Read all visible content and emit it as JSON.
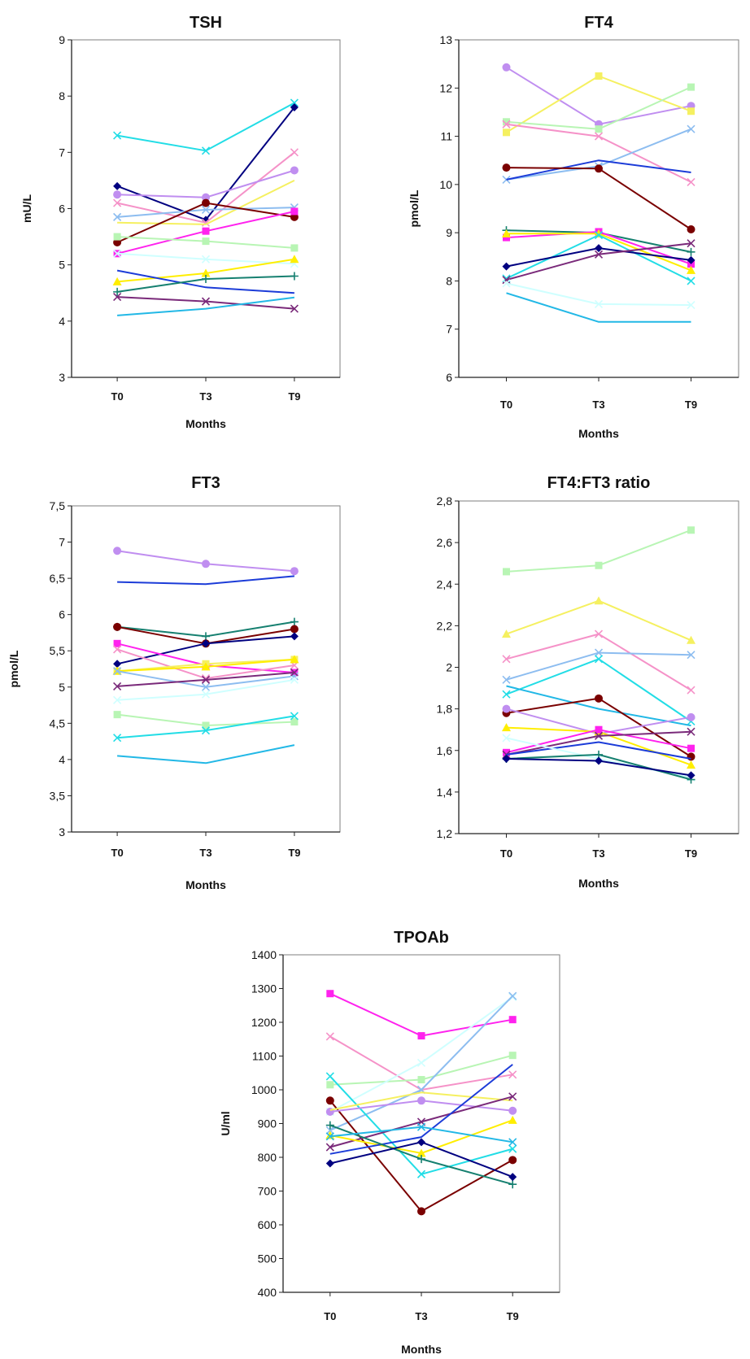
{
  "chart_data": [
    {
      "id": "tsh",
      "type": "line",
      "title": "TSH",
      "xlabel": "Months",
      "ylabel": "mU/L",
      "categories": [
        "T0",
        "T3",
        "T9"
      ],
      "ylim": [
        3,
        9
      ],
      "yticks": [
        3,
        4,
        5,
        6,
        7,
        8,
        9
      ],
      "grid": false,
      "series": [
        {
          "values": [
            7.3,
            7.03,
            7.88
          ],
          "color": "#22dde6",
          "marker": "x"
        },
        {
          "values": [
            6.4,
            5.8,
            7.8
          ],
          "color": "#000080",
          "marker": "diamond"
        },
        {
          "values": [
            6.1,
            5.75,
            7.0
          ],
          "color": "#f592c8",
          "marker": "x"
        },
        {
          "values": [
            6.25,
            6.2,
            6.68
          ],
          "color": "#c08ef0",
          "marker": "circle"
        },
        {
          "values": [
            5.75,
            5.72,
            6.5
          ],
          "color": "#f5f060",
          "marker": "none"
        },
        {
          "values": [
            5.85,
            5.98,
            6.02
          ],
          "color": "#8dbdf0",
          "marker": "x"
        },
        {
          "values": [
            5.4,
            6.1,
            5.85
          ],
          "color": "#7a0000",
          "marker": "circle"
        },
        {
          "values": [
            5.2,
            5.6,
            5.95
          ],
          "color": "#ff22ee",
          "marker": "square"
        },
        {
          "values": [
            5.5,
            5.42,
            5.3
          ],
          "color": "#b8f5b4",
          "marker": "square"
        },
        {
          "values": [
            5.2,
            5.1,
            5.02
          ],
          "color": "#cfffff",
          "marker": "x"
        },
        {
          "values": [
            4.7,
            4.85,
            5.1
          ],
          "color": "#ffee00",
          "marker": "triangle"
        },
        {
          "values": [
            4.9,
            4.6,
            4.5
          ],
          "color": "#1c3cd8",
          "marker": "none"
        },
        {
          "values": [
            4.52,
            4.75,
            4.8
          ],
          "color": "#168070",
          "marker": "plus"
        },
        {
          "values": [
            4.43,
            4.35,
            4.22
          ],
          "color": "#7a2a7a",
          "marker": "x"
        },
        {
          "values": [
            4.1,
            4.22,
            4.42
          ],
          "color": "#22b8e6",
          "marker": "none"
        }
      ]
    },
    {
      "id": "ft4",
      "type": "line",
      "title": "FT4",
      "xlabel": "Months",
      "ylabel": "pmol/L",
      "categories": [
        "T0",
        "T3",
        "T9"
      ],
      "ylim": [
        6,
        13
      ],
      "yticks": [
        6,
        7,
        8,
        9,
        10,
        11,
        12,
        13
      ],
      "grid": false,
      "series": [
        {
          "values": [
            12.43,
            11.25,
            11.63
          ],
          "color": "#c08ef0",
          "marker": "circle"
        },
        {
          "values": [
            11.08,
            12.25,
            11.52
          ],
          "color": "#f5f060",
          "marker": "square"
        },
        {
          "values": [
            11.3,
            11.15,
            12.02
          ],
          "color": "#b8f5b4",
          "marker": "square"
        },
        {
          "values": [
            11.25,
            11.0,
            10.05
          ],
          "color": "#f592c8",
          "marker": "x"
        },
        {
          "values": [
            10.1,
            10.38,
            11.15
          ],
          "color": "#8dbdf0",
          "marker": "x"
        },
        {
          "values": [
            10.1,
            10.5,
            10.25
          ],
          "color": "#1c3cd8",
          "marker": "none"
        },
        {
          "values": [
            10.35,
            10.33,
            9.07
          ],
          "color": "#7a0000",
          "marker": "circle"
        },
        {
          "values": [
            9.05,
            9.0,
            8.6
          ],
          "color": "#168070",
          "marker": "plus"
        },
        {
          "values": [
            8.9,
            9.02,
            8.35
          ],
          "color": "#ff22ee",
          "marker": "square"
        },
        {
          "values": [
            8.98,
            8.98,
            8.22
          ],
          "color": "#ffee00",
          "marker": "triangle"
        },
        {
          "values": [
            8.05,
            8.95,
            8.0
          ],
          "color": "#22dde6",
          "marker": "x"
        },
        {
          "values": [
            8.3,
            8.68,
            8.43
          ],
          "color": "#000080",
          "marker": "diamond"
        },
        {
          "values": [
            8.02,
            8.55,
            8.78
          ],
          "color": "#7a2a7a",
          "marker": "x"
        },
        {
          "values": [
            7.95,
            7.52,
            7.5
          ],
          "color": "#cfffff",
          "marker": "x"
        },
        {
          "values": [
            7.75,
            7.15,
            7.15
          ],
          "color": "#22b8e6",
          "marker": "none"
        }
      ]
    },
    {
      "id": "ft3",
      "type": "line",
      "title": "FT3",
      "xlabel": "Months",
      "ylabel": "pmol/L",
      "categories": [
        "T0",
        "T3",
        "T9"
      ],
      "ylim": [
        3,
        7.5
      ],
      "yticks": [
        3,
        3.5,
        4,
        4.5,
        5,
        5.5,
        6,
        6.5,
        7,
        7.5
      ],
      "decimal": ",",
      "grid": false,
      "series": [
        {
          "values": [
            6.88,
            6.7,
            6.6
          ],
          "color": "#c08ef0",
          "marker": "circle"
        },
        {
          "values": [
            6.45,
            6.42,
            6.53
          ],
          "color": "#1c3cd8",
          "marker": "none"
        },
        {
          "values": [
            5.83,
            5.7,
            5.9
          ],
          "color": "#168070",
          "marker": "plus"
        },
        {
          "values": [
            5.83,
            5.6,
            5.8
          ],
          "color": "#7a0000",
          "marker": "circle"
        },
        {
          "values": [
            5.32,
            5.6,
            5.7
          ],
          "color": "#000080",
          "marker": "diamond"
        },
        {
          "values": [
            5.6,
            5.3,
            5.2
          ],
          "color": "#ff22ee",
          "marker": "square"
        },
        {
          "values": [
            5.52,
            5.12,
            5.3
          ],
          "color": "#f592c8",
          "marker": "x"
        },
        {
          "values": [
            5.22,
            5.32,
            5.38
          ],
          "color": "#f5f060",
          "marker": "square"
        },
        {
          "values": [
            5.22,
            5.28,
            5.38
          ],
          "color": "#ffee00",
          "marker": "triangle"
        },
        {
          "values": [
            5.22,
            5.0,
            5.15
          ],
          "color": "#8dbdf0",
          "marker": "x"
        },
        {
          "values": [
            5.01,
            5.1,
            5.2
          ],
          "color": "#7a2a7a",
          "marker": "x"
        },
        {
          "values": [
            4.82,
            4.9,
            5.1
          ],
          "color": "#cfffff",
          "marker": "x"
        },
        {
          "values": [
            4.62,
            4.47,
            4.52
          ],
          "color": "#b8f5b4",
          "marker": "square"
        },
        {
          "values": [
            4.3,
            4.4,
            4.6
          ],
          "color": "#22dde6",
          "marker": "x"
        },
        {
          "values": [
            4.05,
            3.95,
            4.2
          ],
          "color": "#22b8e6",
          "marker": "none"
        }
      ]
    },
    {
      "id": "ratio",
      "type": "line",
      "title": "FT4:FT3 ratio",
      "xlabel": "Months",
      "ylabel": "",
      "categories": [
        "T0",
        "T3",
        "T9"
      ],
      "ylim": [
        1.2,
        2.8
      ],
      "yticks": [
        1.2,
        1.4,
        1.6,
        1.8,
        2.0,
        2.2,
        2.4,
        2.6,
        2.8
      ],
      "decimal": ",",
      "grid": false,
      "series": [
        {
          "values": [
            2.46,
            2.49,
            2.66
          ],
          "color": "#b8f5b4",
          "marker": "square"
        },
        {
          "values": [
            2.16,
            2.32,
            2.13
          ],
          "color": "#f5f060",
          "marker": "triangle"
        },
        {
          "values": [
            2.04,
            2.16,
            1.89
          ],
          "color": "#f592c8",
          "marker": "x"
        },
        {
          "values": [
            1.94,
            2.07,
            2.06
          ],
          "color": "#8dbdf0",
          "marker": "x"
        },
        {
          "values": [
            1.87,
            2.04,
            1.74
          ],
          "color": "#22dde6",
          "marker": "x"
        },
        {
          "values": [
            1.91,
            1.8,
            1.72
          ],
          "color": "#22b8e6",
          "marker": "none"
        },
        {
          "values": [
            1.78,
            1.85,
            1.57
          ],
          "color": "#7a0000",
          "marker": "circle"
        },
        {
          "values": [
            1.8,
            1.68,
            1.76
          ],
          "color": "#c08ef0",
          "marker": "circle"
        },
        {
          "values": [
            1.71,
            1.69,
            1.53
          ],
          "color": "#ffee00",
          "marker": "triangle"
        },
        {
          "values": [
            1.59,
            1.7,
            1.61
          ],
          "color": "#ff22ee",
          "marker": "square"
        },
        {
          "values": [
            1.58,
            1.67,
            1.69
          ],
          "color": "#7a2a7a",
          "marker": "x"
        },
        {
          "values": [
            1.58,
            1.64,
            1.56
          ],
          "color": "#1c3cd8",
          "marker": "none"
        },
        {
          "values": [
            1.66,
            1.56,
            1.47
          ],
          "color": "#cfffff",
          "marker": "x"
        },
        {
          "values": [
            1.56,
            1.58,
            1.46
          ],
          "color": "#168070",
          "marker": "plus"
        },
        {
          "values": [
            1.56,
            1.55,
            1.48
          ],
          "color": "#000080",
          "marker": "diamond"
        }
      ]
    },
    {
      "id": "tpoab",
      "type": "line",
      "title": "TPOAb",
      "xlabel": "Months",
      "ylabel": "U/ml",
      "categories": [
        "T0",
        "T3",
        "T9"
      ],
      "ylim": [
        400,
        1400
      ],
      "yticks": [
        400,
        500,
        600,
        700,
        800,
        900,
        1000,
        1100,
        1200,
        1300,
        1400
      ],
      "grid": false,
      "series": [
        {
          "values": [
            1285,
            1160,
            1208
          ],
          "color": "#ff22ee",
          "marker": "square"
        },
        {
          "values": [
            1158,
            1000,
            1045
          ],
          "color": "#f592c8",
          "marker": "x"
        },
        {
          "values": [
            1015,
            1030,
            1102
          ],
          "color": "#b8f5b4",
          "marker": "square"
        },
        {
          "values": [
            935,
            1080,
            1275
          ],
          "color": "#cfffff",
          "marker": "x"
        },
        {
          "values": [
            880,
            1000,
            1278
          ],
          "color": "#8dbdf0",
          "marker": "x"
        },
        {
          "values": [
            1040,
            750,
            825
          ],
          "color": "#22dde6",
          "marker": "x"
        },
        {
          "values": [
            968,
            640,
            792
          ],
          "color": "#7a0000",
          "marker": "circle"
        },
        {
          "values": [
            935,
            968,
            938
          ],
          "color": "#c08ef0",
          "marker": "circle"
        },
        {
          "values": [
            940,
            992,
            968
          ],
          "color": "#f5f060",
          "marker": "none"
        },
        {
          "values": [
            830,
            905,
            980
          ],
          "color": "#7a2a7a",
          "marker": "x"
        },
        {
          "values": [
            865,
            812,
            910
          ],
          "color": "#ffee00",
          "marker": "triangle"
        },
        {
          "values": [
            810,
            860,
            1075
          ],
          "color": "#1c3cd8",
          "marker": "none"
        },
        {
          "values": [
            895,
            795,
            720
          ],
          "color": "#168070",
          "marker": "plus"
        },
        {
          "values": [
            862,
            890,
            845
          ],
          "color": "#22b8e6",
          "marker": "x"
        },
        {
          "values": [
            782,
            845,
            742
          ],
          "color": "#000080",
          "marker": "diamond"
        }
      ]
    }
  ]
}
